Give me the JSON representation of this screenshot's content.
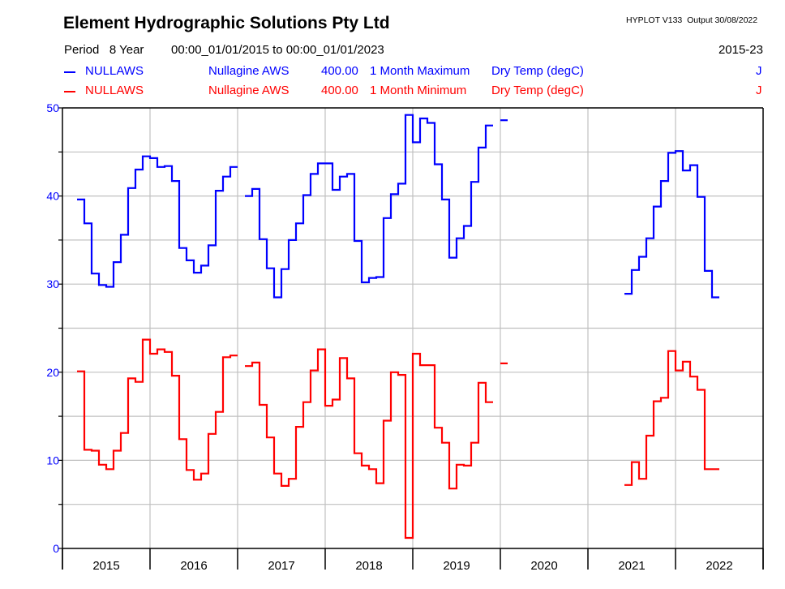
{
  "header": {
    "title": "Element Hydrographic Solutions Pty Ltd",
    "version": "HYPLOT V133  Output 30/08/2022",
    "period_label": "Period   8 Year",
    "period_range": "00:00_01/01/2015 to 00:00_01/01/2023",
    "year_range": "2015-23"
  },
  "legend": [
    {
      "site": "NULLAWS",
      "name": "Nullagine AWS",
      "code": "400.00",
      "stat": "1 Month Maximum",
      "variable": "Dry Temp (degC)",
      "flag": "J",
      "color": "#0000ff"
    },
    {
      "site": "NULLAWS",
      "name": "Nullagine AWS",
      "code": "400.00",
      "stat": "1 Month Minimum",
      "variable": "Dry Temp (degC)",
      "flag": "J",
      "color": "#ff0000"
    }
  ],
  "chart_data": {
    "type": "line",
    "step": true,
    "title": "Element Hydrographic Solutions Pty Ltd",
    "xlabel": "",
    "ylabel": "",
    "x_start": "2015-01",
    "x_end": "2023-01",
    "x_unit": "month",
    "categories": [
      "2015",
      "2016",
      "2017",
      "2018",
      "2019",
      "2020",
      "2021",
      "2022"
    ],
    "ylim": [
      0,
      50
    ],
    "y_ticks_major": [
      0,
      10,
      20,
      30,
      40,
      50
    ],
    "y_ticks_minor": [
      5,
      15,
      25,
      35,
      45
    ],
    "grid": true,
    "legend_position": "top",
    "series": [
      {
        "name": "NULLAWS Nullagine AWS 400.00 1 Month Maximum Dry Temp (degC)",
        "color": "#0000ff",
        "points": [
          {
            "month": "2015-03",
            "value": 39.6
          },
          {
            "month": "2015-04",
            "value": 36.9
          },
          {
            "month": "2015-05",
            "value": 31.2
          },
          {
            "month": "2015-06",
            "value": 29.9
          },
          {
            "month": "2015-07",
            "value": 29.7
          },
          {
            "month": "2015-08",
            "value": 32.5
          },
          {
            "month": "2015-09",
            "value": 35.6
          },
          {
            "month": "2015-10",
            "value": 40.9
          },
          {
            "month": "2015-11",
            "value": 43.0
          },
          {
            "month": "2015-12",
            "value": 44.5
          },
          {
            "month": "2016-01",
            "value": 44.3
          },
          {
            "month": "2016-02",
            "value": 43.3
          },
          {
            "month": "2016-03",
            "value": 43.4
          },
          {
            "month": "2016-04",
            "value": 41.7
          },
          {
            "month": "2016-05",
            "value": 34.1
          },
          {
            "month": "2016-06",
            "value": 32.7
          },
          {
            "month": "2016-07",
            "value": 31.3
          },
          {
            "month": "2016-08",
            "value": 32.1
          },
          {
            "month": "2016-09",
            "value": 34.4
          },
          {
            "month": "2016-10",
            "value": 40.6
          },
          {
            "month": "2016-11",
            "value": 42.2
          },
          {
            "month": "2016-12",
            "value": 43.3
          },
          {
            "month": "2017-01",
            "value": null
          },
          {
            "month": "2017-02",
            "value": 40.0
          },
          {
            "month": "2017-03",
            "value": 40.8
          },
          {
            "month": "2017-04",
            "value": 35.1
          },
          {
            "month": "2017-05",
            "value": 31.8
          },
          {
            "month": "2017-06",
            "value": 28.5
          },
          {
            "month": "2017-07",
            "value": 31.7
          },
          {
            "month": "2017-08",
            "value": 35.0
          },
          {
            "month": "2017-09",
            "value": 36.9
          },
          {
            "month": "2017-10",
            "value": 40.1
          },
          {
            "month": "2017-11",
            "value": 42.5
          },
          {
            "month": "2017-12",
            "value": 43.7
          },
          {
            "month": "2018-01",
            "value": 43.7
          },
          {
            "month": "2018-02",
            "value": 40.7
          },
          {
            "month": "2018-03",
            "value": 42.2
          },
          {
            "month": "2018-04",
            "value": 42.5
          },
          {
            "month": "2018-05",
            "value": 34.9
          },
          {
            "month": "2018-06",
            "value": 30.2
          },
          {
            "month": "2018-07",
            "value": 30.7
          },
          {
            "month": "2018-08",
            "value": 30.8
          },
          {
            "month": "2018-09",
            "value": 37.5
          },
          {
            "month": "2018-10",
            "value": 40.2
          },
          {
            "month": "2018-11",
            "value": 41.4
          },
          {
            "month": "2018-12",
            "value": 49.2
          },
          {
            "month": "2019-01",
            "value": 46.1
          },
          {
            "month": "2019-02",
            "value": 48.8
          },
          {
            "month": "2019-03",
            "value": 48.3
          },
          {
            "month": "2019-04",
            "value": 43.6
          },
          {
            "month": "2019-05",
            "value": 39.6
          },
          {
            "month": "2019-06",
            "value": 33.0
          },
          {
            "month": "2019-07",
            "value": 35.2
          },
          {
            "month": "2019-08",
            "value": 36.6
          },
          {
            "month": "2019-09",
            "value": 41.6
          },
          {
            "month": "2019-10",
            "value": 45.5
          },
          {
            "month": "2019-11",
            "value": 48.0
          },
          {
            "month": "2019-12",
            "value": null
          },
          {
            "month": "2020-01",
            "value": 48.6
          },
          {
            "month": "2020-02",
            "value": null
          },
          {
            "month": "2021-06",
            "value": 28.9
          },
          {
            "month": "2021-07",
            "value": 31.6
          },
          {
            "month": "2021-08",
            "value": 33.1
          },
          {
            "month": "2021-09",
            "value": 35.2
          },
          {
            "month": "2021-10",
            "value": 38.8
          },
          {
            "month": "2021-11",
            "value": 41.7
          },
          {
            "month": "2021-12",
            "value": 44.9
          },
          {
            "month": "2022-01",
            "value": 45.1
          },
          {
            "month": "2022-02",
            "value": 42.9
          },
          {
            "month": "2022-03",
            "value": 43.5
          },
          {
            "month": "2022-04",
            "value": 39.9
          },
          {
            "month": "2022-05",
            "value": 31.5
          },
          {
            "month": "2022-06",
            "value": 28.5
          }
        ]
      },
      {
        "name": "NULLAWS Nullagine AWS 400.00 1 Month Minimum Dry Temp (degC)",
        "color": "#ff0000",
        "points": [
          {
            "month": "2015-03",
            "value": 20.1
          },
          {
            "month": "2015-04",
            "value": 11.2
          },
          {
            "month": "2015-05",
            "value": 11.1
          },
          {
            "month": "2015-06",
            "value": 9.5
          },
          {
            "month": "2015-07",
            "value": 9.0
          },
          {
            "month": "2015-08",
            "value": 11.1
          },
          {
            "month": "2015-09",
            "value": 13.1
          },
          {
            "month": "2015-10",
            "value": 19.3
          },
          {
            "month": "2015-11",
            "value": 18.9
          },
          {
            "month": "2015-12",
            "value": 23.7
          },
          {
            "month": "2016-01",
            "value": 22.1
          },
          {
            "month": "2016-02",
            "value": 22.6
          },
          {
            "month": "2016-03",
            "value": 22.3
          },
          {
            "month": "2016-04",
            "value": 19.6
          },
          {
            "month": "2016-05",
            "value": 12.4
          },
          {
            "month": "2016-06",
            "value": 8.9
          },
          {
            "month": "2016-07",
            "value": 7.8
          },
          {
            "month": "2016-08",
            "value": 8.5
          },
          {
            "month": "2016-09",
            "value": 13.0
          },
          {
            "month": "2016-10",
            "value": 15.5
          },
          {
            "month": "2016-11",
            "value": 21.7
          },
          {
            "month": "2016-12",
            "value": 21.9
          },
          {
            "month": "2017-01",
            "value": null
          },
          {
            "month": "2017-02",
            "value": 20.7
          },
          {
            "month": "2017-03",
            "value": 21.1
          },
          {
            "month": "2017-04",
            "value": 16.3
          },
          {
            "month": "2017-05",
            "value": 12.6
          },
          {
            "month": "2017-06",
            "value": 8.5
          },
          {
            "month": "2017-07",
            "value": 7.1
          },
          {
            "month": "2017-08",
            "value": 7.9
          },
          {
            "month": "2017-09",
            "value": 13.8
          },
          {
            "month": "2017-10",
            "value": 16.6
          },
          {
            "month": "2017-11",
            "value": 20.2
          },
          {
            "month": "2017-12",
            "value": 22.6
          },
          {
            "month": "2018-01",
            "value": 16.2
          },
          {
            "month": "2018-02",
            "value": 16.9
          },
          {
            "month": "2018-03",
            "value": 21.6
          },
          {
            "month": "2018-04",
            "value": 19.3
          },
          {
            "month": "2018-05",
            "value": 10.8
          },
          {
            "month": "2018-06",
            "value": 9.4
          },
          {
            "month": "2018-07",
            "value": 9.0
          },
          {
            "month": "2018-08",
            "value": 7.4
          },
          {
            "month": "2018-09",
            "value": 14.5
          },
          {
            "month": "2018-10",
            "value": 20.0
          },
          {
            "month": "2018-11",
            "value": 19.7
          },
          {
            "month": "2018-12",
            "value": 1.2
          },
          {
            "month": "2019-01",
            "value": 22.1
          },
          {
            "month": "2019-02",
            "value": 20.8
          },
          {
            "month": "2019-03",
            "value": 20.8
          },
          {
            "month": "2019-04",
            "value": 13.7
          },
          {
            "month": "2019-05",
            "value": 12.0
          },
          {
            "month": "2019-06",
            "value": 6.8
          },
          {
            "month": "2019-07",
            "value": 9.5
          },
          {
            "month": "2019-08",
            "value": 9.4
          },
          {
            "month": "2019-09",
            "value": 12.0
          },
          {
            "month": "2019-10",
            "value": 18.8
          },
          {
            "month": "2019-11",
            "value": 16.6
          },
          {
            "month": "2019-12",
            "value": null
          },
          {
            "month": "2020-01",
            "value": 21.0
          },
          {
            "month": "2020-02",
            "value": null
          },
          {
            "month": "2021-06",
            "value": 7.2
          },
          {
            "month": "2021-07",
            "value": 9.8
          },
          {
            "month": "2021-08",
            "value": 7.9
          },
          {
            "month": "2021-09",
            "value": 12.8
          },
          {
            "month": "2021-10",
            "value": 16.7
          },
          {
            "month": "2021-11",
            "value": 17.1
          },
          {
            "month": "2021-12",
            "value": 22.4
          },
          {
            "month": "2022-01",
            "value": 20.2
          },
          {
            "month": "2022-02",
            "value": 21.2
          },
          {
            "month": "2022-03",
            "value": 19.5
          },
          {
            "month": "2022-04",
            "value": 18.0
          },
          {
            "month": "2022-05",
            "value": 9.0
          },
          {
            "month": "2022-06",
            "value": 9.0
          }
        ]
      }
    ]
  }
}
